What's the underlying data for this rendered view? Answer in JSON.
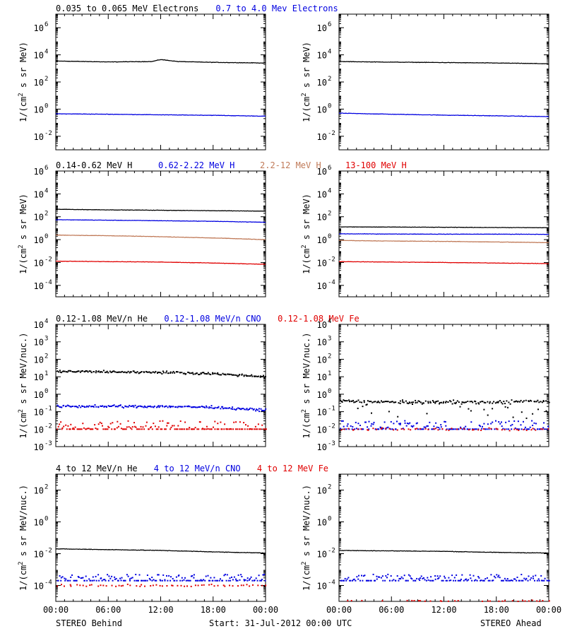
{
  "colors": {
    "black": "#000000",
    "blue": "#0000e0",
    "brown": "#c07a58",
    "red": "#e00000"
  },
  "footer": {
    "left": "STEREO Behind",
    "center": "Start: 31-Jul-2012 00:00 UTC",
    "right": "STEREO Ahead"
  },
  "time_ticks": [
    "00:00",
    "06:00",
    "12:00",
    "18:00",
    "00:00"
  ],
  "chart_data": [
    {
      "type": "line",
      "row": 1,
      "panel": "STEREO Behind",
      "legend": [
        {
          "text": "0.035 to 0.065 MeV Electrons",
          "color": "black"
        },
        {
          "text": "0.7 to 4.0 Mev Electrons",
          "color": "blue"
        }
      ],
      "ylabel": "1/(cm2 s sr MeV)",
      "yscale": "log",
      "ylim": [
        0.001,
        10000000
      ],
      "yticks": [
        {
          "v": 1000000,
          "base": "10",
          "exp": "6"
        },
        {
          "v": 10000,
          "base": "10",
          "exp": "4"
        },
        {
          "v": 100,
          "base": "10",
          "exp": "2"
        },
        {
          "v": 1,
          "base": "10",
          "exp": "0"
        },
        {
          "v": 0.01,
          "base": "10",
          "exp": "-2"
        }
      ],
      "x_hours": [
        0,
        24
      ],
      "series": [
        {
          "color": "black",
          "style": "line",
          "x": [
            0,
            6,
            11,
            12,
            14,
            18,
            24
          ],
          "y": [
            3500,
            3000,
            3200,
            4500,
            3200,
            2800,
            2500
          ]
        },
        {
          "color": "blue",
          "style": "line",
          "x": [
            0,
            6,
            12,
            18,
            24
          ],
          "y": [
            0.45,
            0.42,
            0.38,
            0.35,
            0.3
          ]
        }
      ]
    },
    {
      "type": "line",
      "row": 1,
      "panel": "STEREO Ahead",
      "legend": [],
      "ylabel": "1/(cm2 s sr MeV)",
      "yscale": "log",
      "ylim": [
        0.001,
        10000000
      ],
      "yticks": [
        {
          "v": 1000000,
          "base": "10",
          "exp": "6"
        },
        {
          "v": 10000,
          "base": "10",
          "exp": "4"
        },
        {
          "v": 100,
          "base": "10",
          "exp": "2"
        },
        {
          "v": 1,
          "base": "10",
          "exp": "0"
        },
        {
          "v": 0.01,
          "base": "10",
          "exp": "-2"
        }
      ],
      "x_hours": [
        0,
        24
      ],
      "series": [
        {
          "color": "black",
          "style": "line",
          "x": [
            0,
            6,
            12,
            18,
            24
          ],
          "y": [
            3200,
            2900,
            2700,
            2500,
            2200
          ]
        },
        {
          "color": "blue",
          "style": "line",
          "x": [
            0,
            6,
            12,
            18,
            24
          ],
          "y": [
            0.5,
            0.42,
            0.36,
            0.32,
            0.28
          ]
        }
      ]
    },
    {
      "type": "line",
      "row": 2,
      "panel": "STEREO Behind",
      "legend": [
        {
          "text": "0.14-0.62 MeV H",
          "color": "black"
        },
        {
          "text": "0.62-2.22 MeV H",
          "color": "blue"
        },
        {
          "text": "2.2-12 MeV H",
          "color": "brown"
        },
        {
          "text": "13-100 MeV H",
          "color": "red"
        }
      ],
      "ylabel": "1/(cm2 s sr MeV)",
      "yscale": "log",
      "ylim": [
        1e-05,
        1000000
      ],
      "yticks": [
        {
          "v": 1000000,
          "base": "10",
          "exp": "6"
        },
        {
          "v": 10000,
          "base": "10",
          "exp": "4"
        },
        {
          "v": 100,
          "base": "10",
          "exp": "2"
        },
        {
          "v": 1,
          "base": "10",
          "exp": "0"
        },
        {
          "v": 0.01,
          "base": "10",
          "exp": "-2"
        },
        {
          "v": 0.0001,
          "base": "10",
          "exp": "-4"
        }
      ],
      "x_hours": [
        0,
        24
      ],
      "series": [
        {
          "color": "black",
          "style": "line",
          "x": [
            0,
            6,
            12,
            18,
            24
          ],
          "y": [
            450,
            400,
            370,
            340,
            310
          ]
        },
        {
          "color": "blue",
          "style": "line",
          "x": [
            0,
            6,
            12,
            18,
            24
          ],
          "y": [
            55,
            50,
            45,
            40,
            33
          ]
        },
        {
          "color": "brown",
          "style": "line",
          "x": [
            0,
            6,
            12,
            18,
            24
          ],
          "y": [
            2.5,
            2.2,
            1.8,
            1.4,
            1.0
          ]
        },
        {
          "color": "red",
          "style": "line",
          "x": [
            0,
            6,
            12,
            18,
            24
          ],
          "y": [
            0.013,
            0.012,
            0.011,
            0.009,
            0.007
          ]
        }
      ]
    },
    {
      "type": "line",
      "row": 2,
      "panel": "STEREO Ahead",
      "legend": [],
      "ylabel": "1/(cm2 s sr MeV)",
      "yscale": "log",
      "ylim": [
        1e-05,
        1000000
      ],
      "yticks": [
        {
          "v": 1000000,
          "base": "10",
          "exp": "6"
        },
        {
          "v": 10000,
          "base": "10",
          "exp": "4"
        },
        {
          "v": 100,
          "base": "10",
          "exp": "2"
        },
        {
          "v": 1,
          "base": "10",
          "exp": "0"
        },
        {
          "v": 0.01,
          "base": "10",
          "exp": "-2"
        },
        {
          "v": 0.0001,
          "base": "10",
          "exp": "-4"
        }
      ],
      "x_hours": [
        0,
        24
      ],
      "series": [
        {
          "color": "black",
          "style": "line",
          "x": [
            0,
            6,
            12,
            18,
            24
          ],
          "y": [
            13,
            12.5,
            12,
            11.5,
            11
          ]
        },
        {
          "color": "blue",
          "style": "line",
          "x": [
            0,
            6,
            12,
            18,
            24
          ],
          "y": [
            3.2,
            3.1,
            3.0,
            3.0,
            2.9
          ]
        },
        {
          "color": "brown",
          "style": "line",
          "x": [
            0,
            6,
            12,
            18,
            24
          ],
          "y": [
            0.85,
            0.75,
            0.7,
            0.62,
            0.55
          ]
        },
        {
          "color": "red",
          "style": "line",
          "x": [
            0,
            6,
            12,
            18,
            24
          ],
          "y": [
            0.012,
            0.011,
            0.01,
            0.009,
            0.008
          ]
        }
      ]
    },
    {
      "type": "scatter",
      "row": 3,
      "panel": "STEREO Behind",
      "legend": [
        {
          "text": "0.12-1.08 MeV/n He",
          "color": "black"
        },
        {
          "text": "0.12-1.08 MeV/n CNO",
          "color": "blue"
        },
        {
          "text": "0.12-1.08 MeV Fe",
          "color": "red"
        }
      ],
      "ylabel": "1/(cm2 s sr MeV/nuc.)",
      "yscale": "log",
      "ylim": [
        0.001,
        10000
      ],
      "yticks": [
        {
          "v": 10000,
          "base": "10",
          "exp": "4"
        },
        {
          "v": 1000,
          "base": "10",
          "exp": "3"
        },
        {
          "v": 100,
          "base": "10",
          "exp": "2"
        },
        {
          "v": 10,
          "base": "10",
          "exp": "1"
        },
        {
          "v": 1,
          "base": "10",
          "exp": "0"
        },
        {
          "v": 0.1,
          "base": "10",
          "exp": "-1"
        },
        {
          "v": 0.01,
          "base": "10",
          "exp": "-2"
        },
        {
          "v": 0.001,
          "base": "10",
          "exp": "-3"
        }
      ],
      "x_hours": [
        0,
        24
      ],
      "series": [
        {
          "color": "black",
          "style": "dots",
          "x": [
            0,
            6,
            12,
            18,
            24
          ],
          "y": [
            20,
            19,
            18,
            15,
            10
          ]
        },
        {
          "color": "blue",
          "style": "dots",
          "x": [
            0,
            6,
            12,
            18,
            24
          ],
          "y": [
            0.2,
            0.2,
            0.2,
            0.18,
            0.12
          ]
        },
        {
          "color": "red",
          "style": "dots",
          "x": [
            0,
            24
          ],
          "y": [
            0.01,
            0.01
          ],
          "spread_up": 2
        }
      ]
    },
    {
      "type": "scatter",
      "row": 3,
      "panel": "STEREO Ahead",
      "legend": [],
      "ylabel": "1/(cm2 s sr MeV/nuc.)",
      "yscale": "log",
      "ylim": [
        0.001,
        10000
      ],
      "yticks": [
        {
          "v": 10000,
          "base": "10",
          "exp": "4"
        },
        {
          "v": 1000,
          "base": "10",
          "exp": "3"
        },
        {
          "v": 100,
          "base": "10",
          "exp": "2"
        },
        {
          "v": 10,
          "base": "10",
          "exp": "1"
        },
        {
          "v": 1,
          "base": "10",
          "exp": "0"
        },
        {
          "v": 0.1,
          "base": "10",
          "exp": "-1"
        },
        {
          "v": 0.01,
          "base": "10",
          "exp": "-2"
        },
        {
          "v": 0.001,
          "base": "10",
          "exp": "-3"
        }
      ],
      "x_hours": [
        0,
        24
      ],
      "series": [
        {
          "color": "black",
          "style": "dots",
          "x": [
            0,
            6,
            12,
            18,
            24
          ],
          "y": [
            0.4,
            0.35,
            0.35,
            0.35,
            0.4
          ],
          "spread_down": 2.5
        },
        {
          "color": "blue",
          "style": "dots",
          "x": [
            0,
            24
          ],
          "y": [
            0.01,
            0.01
          ],
          "spread_up": 2
        },
        {
          "color": "red",
          "style": "dots",
          "x": [
            0,
            24
          ],
          "y": [
            0.01,
            0.01
          ],
          "sparse": true
        }
      ]
    },
    {
      "type": "scatter",
      "row": 4,
      "panel": "STEREO Behind",
      "legend": [
        {
          "text": "4 to 12 MeV/n He",
          "color": "black"
        },
        {
          "text": "4 to 12 MeV/n CNO",
          "color": "blue"
        },
        {
          "text": "4 to 12 MeV Fe",
          "color": "red"
        }
      ],
      "ylabel": "1/(cm2 s sr MeV/nuc.)",
      "yscale": "log",
      "ylim": [
        1e-05,
        1000
      ],
      "yticks": [
        {
          "v": 100,
          "base": "10",
          "exp": "2"
        },
        {
          "v": 1,
          "base": "10",
          "exp": "0"
        },
        {
          "v": 0.01,
          "base": "10",
          "exp": "-2"
        },
        {
          "v": 0.0001,
          "base": "10",
          "exp": "-4"
        }
      ],
      "x_hours": [
        0,
        24
      ],
      "series": [
        {
          "color": "black",
          "style": "line",
          "x": [
            0,
            6,
            12,
            18,
            24
          ],
          "y": [
            0.02,
            0.018,
            0.016,
            0.013,
            0.011
          ]
        },
        {
          "color": "blue",
          "style": "dots",
          "x": [
            0,
            24
          ],
          "y": [
            0.0002,
            0.0002
          ],
          "spread_up": 1.5
        },
        {
          "color": "red",
          "style": "dots",
          "x": [
            0,
            24
          ],
          "y": [
            0.0001,
            0.0001
          ],
          "sparse": true
        }
      ]
    },
    {
      "type": "scatter",
      "row": 4,
      "panel": "STEREO Ahead",
      "legend": [],
      "ylabel": "1/(cm2 s sr MeV/nuc.)",
      "yscale": "log",
      "ylim": [
        1e-05,
        1000
      ],
      "yticks": [
        {
          "v": 100,
          "base": "10",
          "exp": "2"
        },
        {
          "v": 1,
          "base": "10",
          "exp": "0"
        },
        {
          "v": 0.01,
          "base": "10",
          "exp": "-2"
        },
        {
          "v": 0.0001,
          "base": "10",
          "exp": "-4"
        }
      ],
      "x_hours": [
        0,
        24
      ],
      "series": [
        {
          "color": "black",
          "style": "line",
          "x": [
            0,
            6,
            12,
            18,
            24
          ],
          "y": [
            0.016,
            0.015,
            0.014,
            0.012,
            0.011
          ]
        },
        {
          "color": "blue",
          "style": "dots",
          "x": [
            0,
            24
          ],
          "y": [
            0.0002,
            0.0002
          ],
          "spread_up": 1.5
        },
        {
          "color": "red",
          "style": "dots",
          "x": [
            0,
            24
          ],
          "y": [
            1e-05,
            1e-05
          ],
          "sparse": true
        }
      ]
    }
  ]
}
